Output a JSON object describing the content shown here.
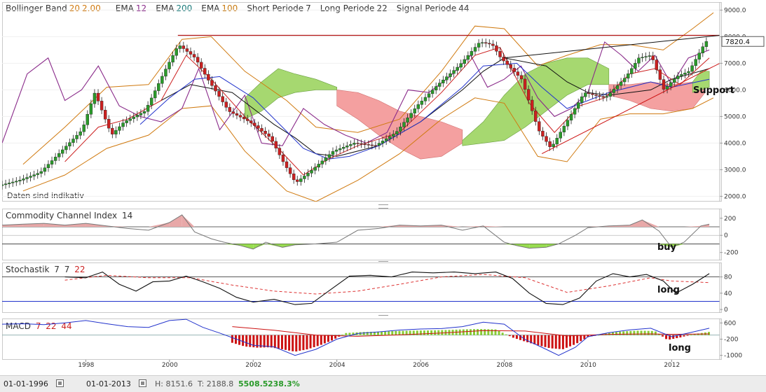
{
  "main_legend": [
    {
      "label": "Bollinger Band",
      "params": [
        "20",
        "2.00"
      ],
      "color": "#d07a10"
    },
    {
      "label": "EMA",
      "params": [
        "12"
      ],
      "color": "#8a2b8a"
    },
    {
      "label": "EMA",
      "params": [
        "200"
      ],
      "color": "#1a7a7a"
    },
    {
      "label": "EMA",
      "params": [
        "100"
      ],
      "color": "#c87a10"
    },
    {
      "label": "Short Periode",
      "params": [
        "7"
      ],
      "color": "#333333"
    },
    {
      "label": "Long Periode",
      "params": [
        "22"
      ],
      "color": "#333333"
    },
    {
      "label": "Signal Periode",
      "params": [
        "44"
      ],
      "color": "#333333"
    }
  ],
  "disclaimer": "Daten sind indikativ",
  "last_price_label": "7820.4",
  "annotations": {
    "support": "Support",
    "buy": "buy",
    "long_stoch": "long",
    "long_macd": "long"
  },
  "cci_legend": {
    "label": "Commodity Channel Index",
    "period": "14"
  },
  "stoch_legend": {
    "label": "Stochastik",
    "k": "7",
    "d": "7",
    "slow": "22",
    "slow_color": "#cc2222"
  },
  "macd_legend": {
    "label": "MACD",
    "short": "7",
    "long": "22",
    "signal": "44",
    "color": "#cc2222"
  },
  "bottom_bar": {
    "start_date": "01-01-1996",
    "end_date": "01-01-2013",
    "high": "H: 8151.6",
    "low": "T: 2188.8",
    "change": "5508.5",
    "change_pct": "238.3%"
  },
  "colors": {
    "up": "#2a9a2a",
    "down": "#cc2020",
    "cloud_green": "#a6d870",
    "cloud_red": "#f4a0a0",
    "bb": "#d07a10",
    "ema12": "#8a2b8a",
    "black": "#111111",
    "blue": "#2233cc",
    "red": "#cc2020"
  },
  "chart_data": [
    {
      "type": "line",
      "name": "price",
      "title": "",
      "x_range": [
        1996.0,
        2013.15
      ],
      "ylim": [
        1800,
        9300
      ],
      "yticks": [
        2000,
        3000,
        4000,
        5000,
        6000,
        7000,
        8000,
        9000
      ],
      "ytick_labels": [
        "2000.0",
        "3000.0",
        "4000.0",
        "5000.0",
        "6000.0",
        "7000.0",
        "8000.0",
        "9000.0"
      ],
      "xticks": [
        1998,
        2000,
        2002,
        2004,
        2006,
        2008,
        2010,
        2012
      ],
      "xtick_labels": [
        "1998",
        "2000",
        "2002",
        "2004",
        "2006",
        "2008",
        "2010",
        "2012"
      ],
      "last_value": 7820.4,
      "price_series": {
        "x": [
          1996.0,
          1996.5,
          1997.0,
          1997.5,
          1998.0,
          1998.3,
          1998.7,
          1999.0,
          1999.5,
          2000.0,
          2000.3,
          2000.7,
          2001.0,
          2001.5,
          2002.0,
          2002.5,
          2002.8,
          2003.1,
          2003.5,
          2004.0,
          2004.5,
          2005.0,
          2005.5,
          2006.0,
          2006.5,
          2007.0,
          2007.5,
          2007.8,
          2008.0,
          2008.5,
          2008.9,
          2009.2,
          2009.5,
          2010.0,
          2010.5,
          2011.0,
          2011.3,
          2011.6,
          2011.9,
          2012.2,
          2012.5,
          2012.9
        ],
        "y": [
          2400,
          2600,
          2900,
          3700,
          4500,
          5900,
          4300,
          4800,
          5200,
          6800,
          7700,
          7200,
          6400,
          5200,
          4800,
          4200,
          3300,
          2500,
          3000,
          3700,
          4000,
          3900,
          4400,
          5400,
          6200,
          6900,
          7800,
          7700,
          7200,
          6400,
          4500,
          3800,
          4600,
          5900,
          5700,
          6500,
          7200,
          7300,
          6000,
          6500,
          6700,
          7820
        ]
      },
      "bb_upper": {
        "x": [
          1996.5,
          1997.5,
          1998.5,
          1999.5,
          2000.3,
          2001.0,
          2001.8,
          2002.8,
          2003.5,
          2004.5,
          2005.5,
          2006.5,
          2007.3,
          2008.0,
          2008.8,
          2009.5,
          2010.3,
          2011.0,
          2011.8,
          2012.5,
          2013.0
        ],
        "y": [
          3200,
          4600,
          6100,
          6200,
          7900,
          8000,
          6700,
          5600,
          4600,
          4400,
          4900,
          6700,
          8400,
          8300,
          6900,
          7300,
          7700,
          7700,
          7500,
          8300,
          8900
        ]
      },
      "bb_lower": {
        "x": [
          1996.5,
          1997.5,
          1998.5,
          1999.5,
          2000.3,
          2001.0,
          2001.8,
          2002.8,
          2003.5,
          2004.5,
          2005.5,
          2006.5,
          2007.3,
          2008.0,
          2008.8,
          2009.5,
          2010.3,
          2011.0,
          2011.8,
          2012.5,
          2013.0
        ],
        "y": [
          2200,
          2800,
          3800,
          4300,
          5300,
          5400,
          3700,
          2200,
          1800,
          2600,
          3600,
          4900,
          5700,
          5500,
          3500,
          3300,
          4900,
          5100,
          5100,
          5300,
          5700
        ]
      },
      "sma_black": {
        "x": [
          1999.8,
          2000.5,
          2001.5,
          2002.5,
          2003.0,
          2003.5,
          2004.0,
          2005.0,
          2006.0,
          2007.0,
          2007.5,
          2008.0,
          2009.0,
          2009.5,
          2010.0,
          2010.5,
          2011.0,
          2011.5,
          2012.0,
          2012.9
        ],
        "y": [
          5600,
          6200,
          5900,
          4700,
          4200,
          3600,
          3500,
          3900,
          4800,
          6000,
          6700,
          7200,
          6900,
          6300,
          5900,
          5800,
          5900,
          6000,
          6400,
          6800
        ]
      },
      "sma_blue": {
        "x": [
          1999.3,
          2000.0,
          2000.6,
          2001.2,
          2002.0,
          2002.7,
          2003.2,
          2003.8,
          2004.3,
          2005.0,
          2006.0,
          2007.0,
          2007.5,
          2008.3,
          2008.9,
          2009.5,
          2010.0,
          2010.5,
          2011.0,
          2011.5,
          2012.0,
          2012.9
        ],
        "y": [
          4700,
          5700,
          6400,
          6500,
          5700,
          4600,
          3800,
          3400,
          3500,
          3900,
          4800,
          6100,
          6900,
          7000,
          6100,
          5300,
          5600,
          5900,
          6100,
          6300,
          6100,
          6400
        ]
      },
      "ema_red": {
        "x": [
          1997.5,
          1998.3,
          1999.0,
          1999.8,
          2000.4,
          2001.0,
          2001.8,
          2002.6,
          2003.2,
          2003.8,
          2004.5,
          2005.5,
          2006.5,
          2007.3,
          2007.9,
          2008.6,
          2009.2,
          2009.8,
          2010.4,
          2011.0,
          2011.6,
          2012.2,
          2012.9
        ],
        "y": [
          3300,
          4600,
          4900,
          5600,
          7300,
          6400,
          5000,
          3800,
          2800,
          3400,
          3900,
          4400,
          5900,
          7300,
          7600,
          5500,
          4400,
          5400,
          5700,
          6600,
          6800,
          6200,
          7200
        ]
      },
      "cci_like_purple": {
        "x": [
          1996.0,
          1996.6,
          1997.1,
          1997.5,
          1997.9,
          1998.3,
          1998.8,
          1999.3,
          1999.8,
          2000.3,
          2000.7,
          2001.2,
          2001.8,
          2002.2,
          2002.7,
          2003.2,
          2003.7,
          2004.2,
          2004.7,
          2005.2,
          2005.7,
          2006.2,
          2006.7,
          2007.2,
          2007.6,
          2008.0,
          2008.4,
          2008.8,
          2009.2,
          2009.6,
          2010.0,
          2010.4,
          2010.8,
          2011.2,
          2011.6,
          2012.0,
          2012.4,
          2012.9
        ],
        "y": [
          4000,
          6600,
          7200,
          5600,
          6000,
          6900,
          5400,
          5000,
          4800,
          5300,
          6800,
          4500,
          5800,
          4000,
          3900,
          5300,
          4700,
          4300,
          4000,
          4400,
          6000,
          5900,
          6500,
          7300,
          6100,
          6400,
          6900,
          5700,
          5000,
          5300,
          5900,
          7800,
          7300,
          6700,
          7300,
          6200,
          7200,
          7500
        ]
      },
      "resistance_line": {
        "x": [
          2000.2,
          2013.15
        ],
        "y": [
          8050,
          8050
        ]
      },
      "trend_up_black": {
        "x": [
          2008.0,
          2013.15
        ],
        "y": [
          7200,
          8050
        ]
      },
      "support_line": {
        "x": [
          2008.9,
          2013.15
        ],
        "y": [
          3600,
          7000
        ]
      },
      "cloud_green_1": {
        "x": [
          2001.8,
          2002.2,
          2002.6,
          2003.0,
          2003.5,
          2004.0
        ],
        "upper": [
          5700,
          6300,
          6800,
          6600,
          6400,
          6100
        ],
        "lower": [
          4900,
          5200,
          5700,
          5900,
          6000,
          6000
        ]
      },
      "cloud_red_1": {
        "x": [
          2004.0,
          2004.5,
          2005.0,
          2005.5,
          2006.0,
          2006.5,
          2007.0
        ],
        "upper": [
          6000,
          5900,
          5600,
          5200,
          5000,
          4800,
          4500
        ],
        "lower": [
          5400,
          4900,
          4300,
          3800,
          3400,
          3500,
          4000
        ]
      },
      "cloud_green_2": {
        "x": [
          2007.0,
          2007.5,
          2008.0,
          2008.5,
          2009.0,
          2009.5,
          2010.0,
          2010.5
        ],
        "upper": [
          4100,
          4800,
          5800,
          6600,
          7000,
          7200,
          7200,
          6800
        ],
        "lower": [
          3900,
          4000,
          4100,
          4600,
          5200,
          5800,
          6200,
          6200
        ]
      },
      "cloud_red_2": {
        "x": [
          2010.5,
          2011.0,
          2011.5,
          2012.0,
          2012.5,
          2012.8
        ],
        "upper": [
          6200,
          6200,
          6300,
          6200,
          6300,
          6600
        ],
        "lower": [
          5800,
          5600,
          5300,
          5200,
          5300,
          5900
        ]
      },
      "cloud_green_3": {
        "x": [
          2012.5,
          2012.7,
          2012.9
        ],
        "upper": [
          6300,
          6700,
          6700
        ],
        "lower": [
          5900,
          6000,
          6100
        ]
      }
    },
    {
      "type": "area",
      "name": "cci",
      "title": "Commodity Channel Index 14",
      "x_range": [
        1996.0,
        2013.15
      ],
      "ylim": [
        -260,
        280
      ],
      "yticks": [
        200,
        0,
        -200
      ],
      "ytick_labels": [
        "200",
        "0",
        "-200"
      ],
      "x": [
        1996.0,
        1996.5,
        1997.0,
        1997.5,
        1998.0,
        1998.5,
        1999.0,
        1999.5,
        2000.0,
        2000.3,
        2000.6,
        2001.0,
        2001.3,
        2001.7,
        2002.0,
        2002.3,
        2002.7,
        2003.0,
        2003.5,
        2004.0,
        2004.5,
        2005.0,
        2005.5,
        2006.0,
        2006.5,
        2007.0,
        2007.5,
        2008.0,
        2008.3,
        2008.6,
        2009.0,
        2009.3,
        2009.7,
        2010.0,
        2010.5,
        2011.0,
        2011.3,
        2011.7,
        2012.0,
        2012.3,
        2012.7,
        2012.9
      ],
      "values": [
        120,
        130,
        140,
        120,
        140,
        110,
        80,
        60,
        150,
        240,
        40,
        -40,
        -80,
        -120,
        -160,
        -80,
        -140,
        -110,
        -100,
        -80,
        60,
        80,
        120,
        110,
        120,
        60,
        110,
        -80,
        -120,
        -150,
        -140,
        -100,
        0,
        90,
        110,
        120,
        180,
        50,
        -140,
        -80,
        110,
        130
      ]
    },
    {
      "type": "line",
      "name": "stochastik",
      "title": "Stochastik 7 7 22",
      "x_range": [
        1996.0,
        2013.15
      ],
      "ylim": [
        -5,
        112
      ],
      "yticks": [
        80,
        40,
        0
      ],
      "ytick_labels": [
        "80",
        "40",
        "0"
      ],
      "k": {
        "x": [
          1997.5,
          1998.0,
          1998.4,
          1998.8,
          1999.2,
          1999.6,
          2000.0,
          2000.4,
          2000.8,
          2001.2,
          2001.6,
          2002.0,
          2002.5,
          2003.0,
          2003.4,
          2003.8,
          2004.3,
          2004.8,
          2005.3,
          2005.8,
          2006.3,
          2006.8,
          2007.3,
          2007.8,
          2008.2,
          2008.6,
          2009.0,
          2009.4,
          2009.8,
          2010.2,
          2010.6,
          2011.0,
          2011.4,
          2011.8,
          2012.1,
          2012.5,
          2012.9
        ],
        "y": [
          80,
          78,
          92,
          62,
          45,
          68,
          70,
          82,
          68,
          52,
          30,
          18,
          25,
          12,
          15,
          45,
          82,
          84,
          80,
          92,
          90,
          92,
          88,
          92,
          76,
          40,
          15,
          12,
          28,
          70,
          88,
          80,
          86,
          70,
          40,
          62,
          88
        ]
      },
      "d": {
        "x": [
          1997.5,
          1998.5,
          1999.5,
          2000.5,
          2001.5,
          2002.5,
          2003.5,
          2004.5,
          2005.5,
          2006.5,
          2007.5,
          2008.5,
          2009.5,
          2010.5,
          2011.5,
          2012.0,
          2012.9
        ],
        "y": [
          72,
          84,
          78,
          78,
          60,
          45,
          38,
          45,
          62,
          80,
          86,
          78,
          42,
          58,
          78,
          70,
          66
        ]
      }
    },
    {
      "type": "bar",
      "name": "macd",
      "title": "MACD 7 22 44",
      "x_range": [
        1996.0,
        2013.15
      ],
      "ylim": [
        -1150,
        750
      ],
      "yticks": [
        600,
        -200,
        -1000
      ],
      "ytick_labels": [
        "600",
        "-200",
        "-1000"
      ],
      "macd_line": {
        "x": [
          1996.0,
          1996.5,
          1997.0,
          1997.5,
          1998.0,
          1998.5,
          1999.0,
          1999.5,
          2000.0,
          2000.4,
          2000.8,
          2001.2,
          2001.6,
          2002.0,
          2002.5,
          2003.0,
          2003.5,
          2004.0,
          2004.5,
          2005.0,
          2005.5,
          2006.0,
          2006.5,
          2007.0,
          2007.5,
          2008.0,
          2008.5,
          2009.0,
          2009.3,
          2009.7,
          2010.0,
          2010.5,
          2011.0,
          2011.5,
          2012.0,
          2012.4,
          2012.9
        ],
        "y": [
          540,
          560,
          520,
          600,
          720,
          560,
          420,
          380,
          720,
          780,
          380,
          100,
          -200,
          -500,
          -580,
          -1000,
          -700,
          -200,
          80,
          160,
          250,
          300,
          320,
          420,
          640,
          540,
          -220,
          -700,
          -1000,
          -600,
          -80,
          120,
          260,
          340,
          -80,
          100,
          340
        ]
      },
      "signal_line": {
        "x": [
          2001.5,
          2002.5,
          2003.5,
          2004.5,
          2005.5,
          2006.5,
          2007.5,
          2008.5,
          2009.5,
          2010.5,
          2011.5,
          2012.0,
          2012.9
        ],
        "y": [
          420,
          240,
          0,
          -60,
          10,
          100,
          220,
          200,
          -40,
          40,
          60,
          40,
          60
        ]
      },
      "hist": {
        "x": [
          2001.5,
          2001.8,
          2002.1,
          2002.4,
          2002.7,
          2003.0,
          2003.3,
          2003.6,
          2003.9,
          2004.2,
          2004.6,
          2005.0,
          2005.4,
          2005.8,
          2006.2,
          2006.6,
          2007.0,
          2007.4,
          2007.8,
          2008.2,
          2008.5,
          2008.8,
          2009.1,
          2009.4,
          2009.7,
          2010.0,
          2010.4,
          2010.8,
          2011.2,
          2011.6,
          2011.9,
          2012.2,
          2012.5,
          2012.9
        ],
        "y": [
          -380,
          -560,
          -620,
          -600,
          -700,
          -820,
          -700,
          -500,
          -250,
          100,
          150,
          170,
          200,
          220,
          230,
          250,
          280,
          300,
          280,
          -120,
          -320,
          -500,
          -650,
          -700,
          -450,
          -100,
          80,
          180,
          220,
          200,
          -240,
          -120,
          40,
          160
        ]
      }
    }
  ]
}
